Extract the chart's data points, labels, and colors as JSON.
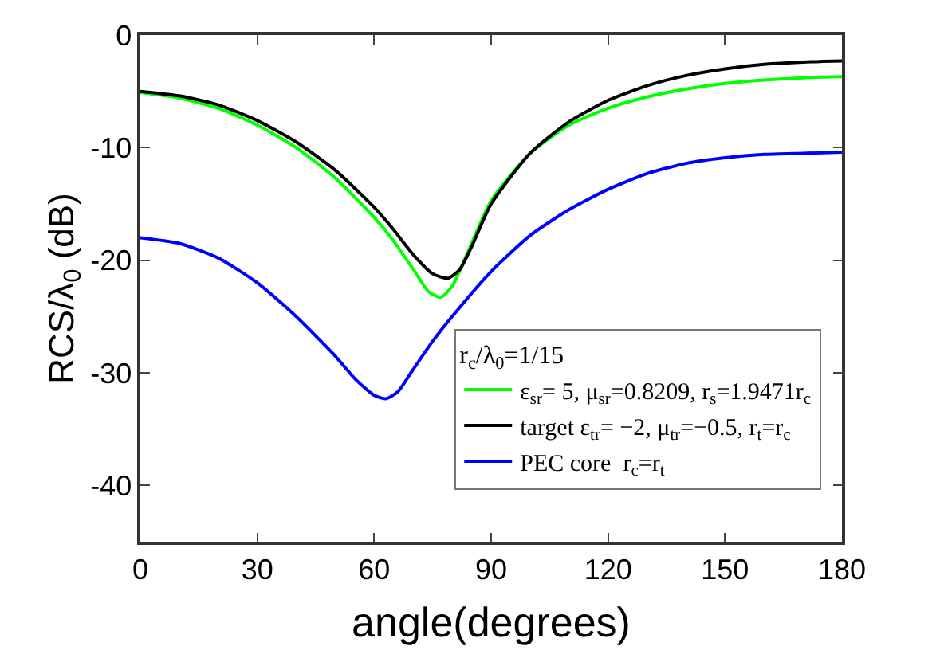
{
  "chart_data": {
    "type": "line",
    "xlabel": "angle(degrees)",
    "ylabel": "RCS/λ$_{0}$ (dB)",
    "legend_title": "r$_{c}$/λ$_{0}$=1/15",
    "xlim": [
      0,
      180
    ],
    "xticks": [
      0,
      30,
      60,
      90,
      120,
      150,
      180
    ],
    "ylim": [
      -45,
      0
    ],
    "yticks": [
      -40,
      -30,
      -20,
      -10,
      0
    ],
    "legend": "bottom right",
    "marker": "none",
    "line_style": "solid",
    "series": [
      {
        "name": "ε$_{sr}$= 5, μ$_{sr}$=0.8209, r$_{s}$=1.9471r$_{c}$",
        "color": "#00ff00",
        "x": [
          0,
          10,
          20,
          30,
          40,
          50,
          60,
          65,
          70,
          74,
          77,
          80,
          85,
          90,
          100,
          110,
          120,
          130,
          140,
          150,
          160,
          170,
          180
        ],
        "values": [
          -5.1,
          -5.6,
          -6.5,
          -8,
          -10,
          -12.7,
          -16.2,
          -18.3,
          -20.8,
          -22.8,
          -23.3,
          -22.3,
          -18.5,
          -14.7,
          -10.5,
          -8,
          -6.5,
          -5.5,
          -4.8,
          -4.3,
          -4,
          -3.8,
          -3.7
        ]
      },
      {
        "name": "target ε$_{tr}$= −2, μ$_{tr}$=−0.5, r$_{t}$=r$_{c}$",
        "color": "#000000",
        "x": [
          0,
          10,
          20,
          30,
          40,
          50,
          60,
          65,
          70,
          75,
          79,
          82,
          85,
          90,
          100,
          110,
          120,
          130,
          140,
          150,
          160,
          170,
          180
        ],
        "values": [
          -5.0,
          -5.4,
          -6.2,
          -7.6,
          -9.5,
          -12,
          -15.3,
          -17.3,
          -19.5,
          -21.2,
          -21.6,
          -20.8,
          -18.8,
          -15,
          -10.5,
          -7.7,
          -5.8,
          -4.5,
          -3.6,
          -3,
          -2.6,
          -2.4,
          -2.3
        ]
      },
      {
        "name": "PEC core  r$_{c}$=r$_{t}$",
        "color": "#0000ff",
        "x": [
          0,
          10,
          20,
          30,
          40,
          50,
          55,
          60,
          63,
          66,
          70,
          75,
          80,
          90,
          100,
          110,
          120,
          130,
          140,
          150,
          160,
          170,
          180
        ],
        "values": [
          -18,
          -18.5,
          -19.8,
          -22,
          -25,
          -28.5,
          -30.5,
          -32,
          -32.3,
          -31.7,
          -29.7,
          -27.2,
          -25,
          -21,
          -17.8,
          -15.5,
          -13.7,
          -12.3,
          -11.4,
          -10.9,
          -10.6,
          -10.5,
          -10.4
        ]
      }
    ]
  }
}
